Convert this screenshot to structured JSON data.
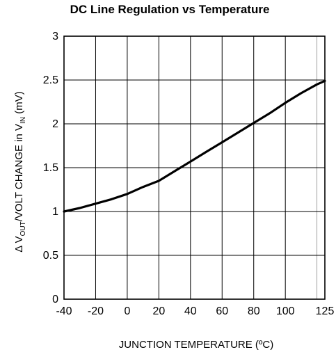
{
  "chart_data": {
    "type": "line",
    "title": "DC Line Regulation vs Temperature",
    "xlabel": "JUNCTION TEMPERATURE (ºC)",
    "ylabel": {
      "prefix": "Δ V",
      "sub1": "OUT",
      "middle": "/VOLT CHANGE in V",
      "sub2": "IN",
      "suffix": " (mV)"
    },
    "x_ticks": [
      -40,
      -20,
      0,
      20,
      40,
      60,
      80,
      100,
      125
    ],
    "x_grid": [
      -40,
      -20,
      0,
      20,
      40,
      60,
      80,
      100,
      120,
      125
    ],
    "y_ticks": [
      0,
      0.5,
      1,
      1.5,
      2,
      2.5,
      3
    ],
    "y_tick_labels": [
      "0",
      "0.5",
      "1",
      "1.5",
      "2",
      "2.5",
      "3"
    ],
    "xlim": [
      -40,
      125
    ],
    "ylim": [
      0,
      3
    ],
    "grid": true,
    "series": [
      {
        "x": [
          -40,
          -30,
          -20,
          -10,
          0,
          10,
          20,
          30,
          40,
          50,
          60,
          70,
          80,
          90,
          100,
          110,
          120,
          125
        ],
        "y": [
          1.0,
          1.04,
          1.09,
          1.14,
          1.2,
          1.28,
          1.35,
          1.46,
          1.57,
          1.68,
          1.79,
          1.9,
          2.01,
          2.12,
          2.24,
          2.35,
          2.45,
          2.49
        ]
      }
    ],
    "line_color": "#000000",
    "grid_color": "#000000"
  }
}
